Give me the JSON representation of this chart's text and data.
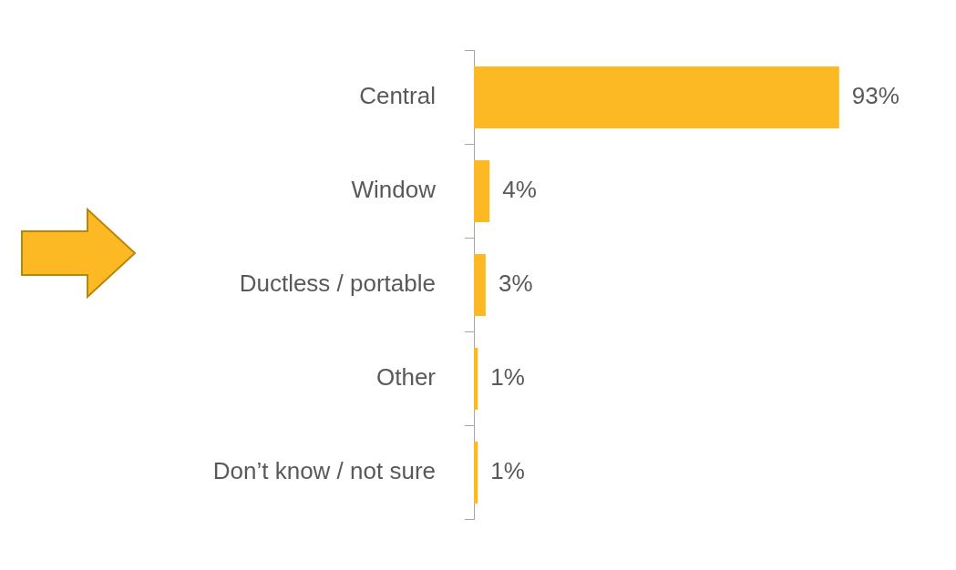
{
  "chart_data": {
    "type": "bar",
    "orientation": "horizontal",
    "categories": [
      "Central",
      "Window",
      "Ductless / portable",
      "Other",
      "Don’t know / not sure"
    ],
    "values": [
      93,
      4,
      3,
      1,
      1
    ],
    "value_labels": [
      "93%",
      "4%",
      "3%",
      "1%",
      "1%"
    ],
    "color": "#fdb924",
    "legend": false,
    "grid": false
  }
}
